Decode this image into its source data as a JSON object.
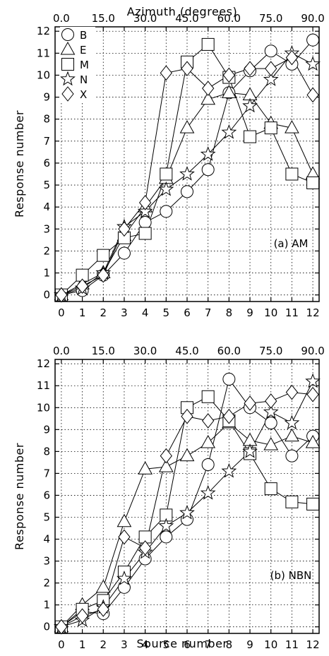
{
  "figure": {
    "top_axis_title": "Azimuth (degrees)",
    "bottom_axis_title": "Source number",
    "y_axis_title": "Response number"
  },
  "chart_data": [
    {
      "type": "line",
      "panel_label": "(a) AM",
      "xlabel": "Source number",
      "ylabel": "Response number",
      "top_xlabel": "Azimuth (degrees)",
      "xlim": [
        -0.3,
        12.3
      ],
      "ylim": [
        -0.3,
        12.2
      ],
      "x_ticks": [
        0,
        1,
        2,
        3,
        4,
        5,
        6,
        7,
        8,
        9,
        10,
        11,
        12
      ],
      "x_tick_labels": [
        "0",
        "1",
        "2",
        "3",
        "4",
        "5",
        "6",
        "7",
        "8",
        "9",
        "10",
        "11",
        "12"
      ],
      "y_ticks": [
        0,
        1,
        2,
        3,
        4,
        5,
        6,
        7,
        8,
        9,
        10,
        11,
        12
      ],
      "y_tick_labels": [
        "0",
        "1",
        "2",
        "3",
        "4",
        "5",
        "6",
        "7",
        "8",
        "9",
        "10",
        "11",
        "12"
      ],
      "top_tick_positions": [
        0,
        2,
        4,
        6,
        8,
        10,
        12
      ],
      "top_tick_labels": [
        "0.0",
        "15.0",
        "30.0",
        "45.0",
        "60.0",
        "75.0",
        "90.0"
      ],
      "grid": true,
      "legend_position": "top-left",
      "x": [
        0,
        1,
        2,
        3,
        4,
        5,
        6,
        7,
        8,
        9,
        10,
        11,
        12
      ],
      "series": [
        {
          "name": "B",
          "marker": "circle",
          "values": [
            0,
            0.2,
            0.9,
            1.9,
            3.3,
            3.8,
            4.7,
            5.7,
            9.2,
            10.2,
            11.1,
            10.5,
            11.6
          ]
        },
        {
          "name": "E",
          "marker": "triangle",
          "values": [
            0,
            0.5,
            1.0,
            2.7,
            4.0,
            5.3,
            7.6,
            8.9,
            9.2,
            9.1,
            7.8,
            7.6,
            5.5
          ]
        },
        {
          "name": "M",
          "marker": "square",
          "values": [
            0,
            0.9,
            1.8,
            2.6,
            2.8,
            5.5,
            10.6,
            11.4,
            9.9,
            7.2,
            7.6,
            5.5,
            5.1
          ]
        },
        {
          "name": "N",
          "marker": "star",
          "values": [
            0,
            0.3,
            1.0,
            3.1,
            3.8,
            4.8,
            5.5,
            6.4,
            7.4,
            8.6,
            9.8,
            11.0,
            10.5
          ]
        },
        {
          "name": "X",
          "marker": "diamond",
          "values": [
            0,
            0.4,
            0.9,
            3.0,
            4.2,
            10.1,
            10.3,
            9.4,
            10.0,
            10.3,
            10.3,
            10.8,
            9.1
          ]
        }
      ]
    },
    {
      "type": "line",
      "panel_label": "(b) NBN",
      "xlabel": "Source number",
      "ylabel": "Response number",
      "xlim": [
        -0.3,
        12.3
      ],
      "ylim": [
        -0.3,
        12.2
      ],
      "x_ticks": [
        0,
        1,
        2,
        3,
        4,
        5,
        6,
        7,
        8,
        9,
        10,
        11,
        12
      ],
      "x_tick_labels": [
        "0",
        "1",
        "2",
        "3",
        "4",
        "5",
        "6",
        "7",
        "8",
        "9",
        "10",
        "11",
        "12"
      ],
      "y_ticks": [
        0,
        1,
        2,
        3,
        4,
        5,
        6,
        7,
        8,
        9,
        10,
        11,
        12
      ],
      "y_tick_labels": [
        "0",
        "1",
        "2",
        "3",
        "4",
        "5",
        "6",
        "7",
        "8",
        "9",
        "10",
        "11",
        "12"
      ],
      "top_tick_positions": [
        0,
        2,
        4,
        6,
        8,
        10,
        12
      ],
      "top_tick_labels": [
        "0.0",
        "15.0",
        "30.0",
        "45.0",
        "60.0",
        "75.0",
        "90.0"
      ],
      "grid": true,
      "x": [
        0,
        1,
        2,
        3,
        4,
        5,
        6,
        7,
        8,
        9,
        10,
        11,
        12
      ],
      "series": [
        {
          "name": "B",
          "marker": "circle",
          "values": [
            0,
            0.7,
            0.6,
            1.8,
            3.1,
            4.1,
            4.9,
            7.4,
            11.3,
            10.0,
            9.3,
            7.8,
            8.7
          ]
        },
        {
          "name": "E",
          "marker": "triangle",
          "values": [
            0,
            1.0,
            1.8,
            4.8,
            7.2,
            7.3,
            7.8,
            8.4,
            9.3,
            8.5,
            8.3,
            8.7,
            8.4
          ]
        },
        {
          "name": "M",
          "marker": "square",
          "values": [
            0,
            0.8,
            1.2,
            2.5,
            4.1,
            5.1,
            10.0,
            10.5,
            9.4,
            7.9,
            6.3,
            5.7,
            5.6
          ]
        },
        {
          "name": "N",
          "marker": "star",
          "values": [
            0,
            0.3,
            0.9,
            2.2,
            3.4,
            4.6,
            5.2,
            6.1,
            7.1,
            8.0,
            9.8,
            9.3,
            11.2
          ]
        },
        {
          "name": "X",
          "marker": "diamond",
          "values": [
            0,
            0.5,
            0.8,
            4.1,
            3.6,
            7.8,
            9.6,
            9.4,
            9.6,
            10.2,
            10.3,
            10.7,
            10.6
          ]
        }
      ]
    }
  ]
}
